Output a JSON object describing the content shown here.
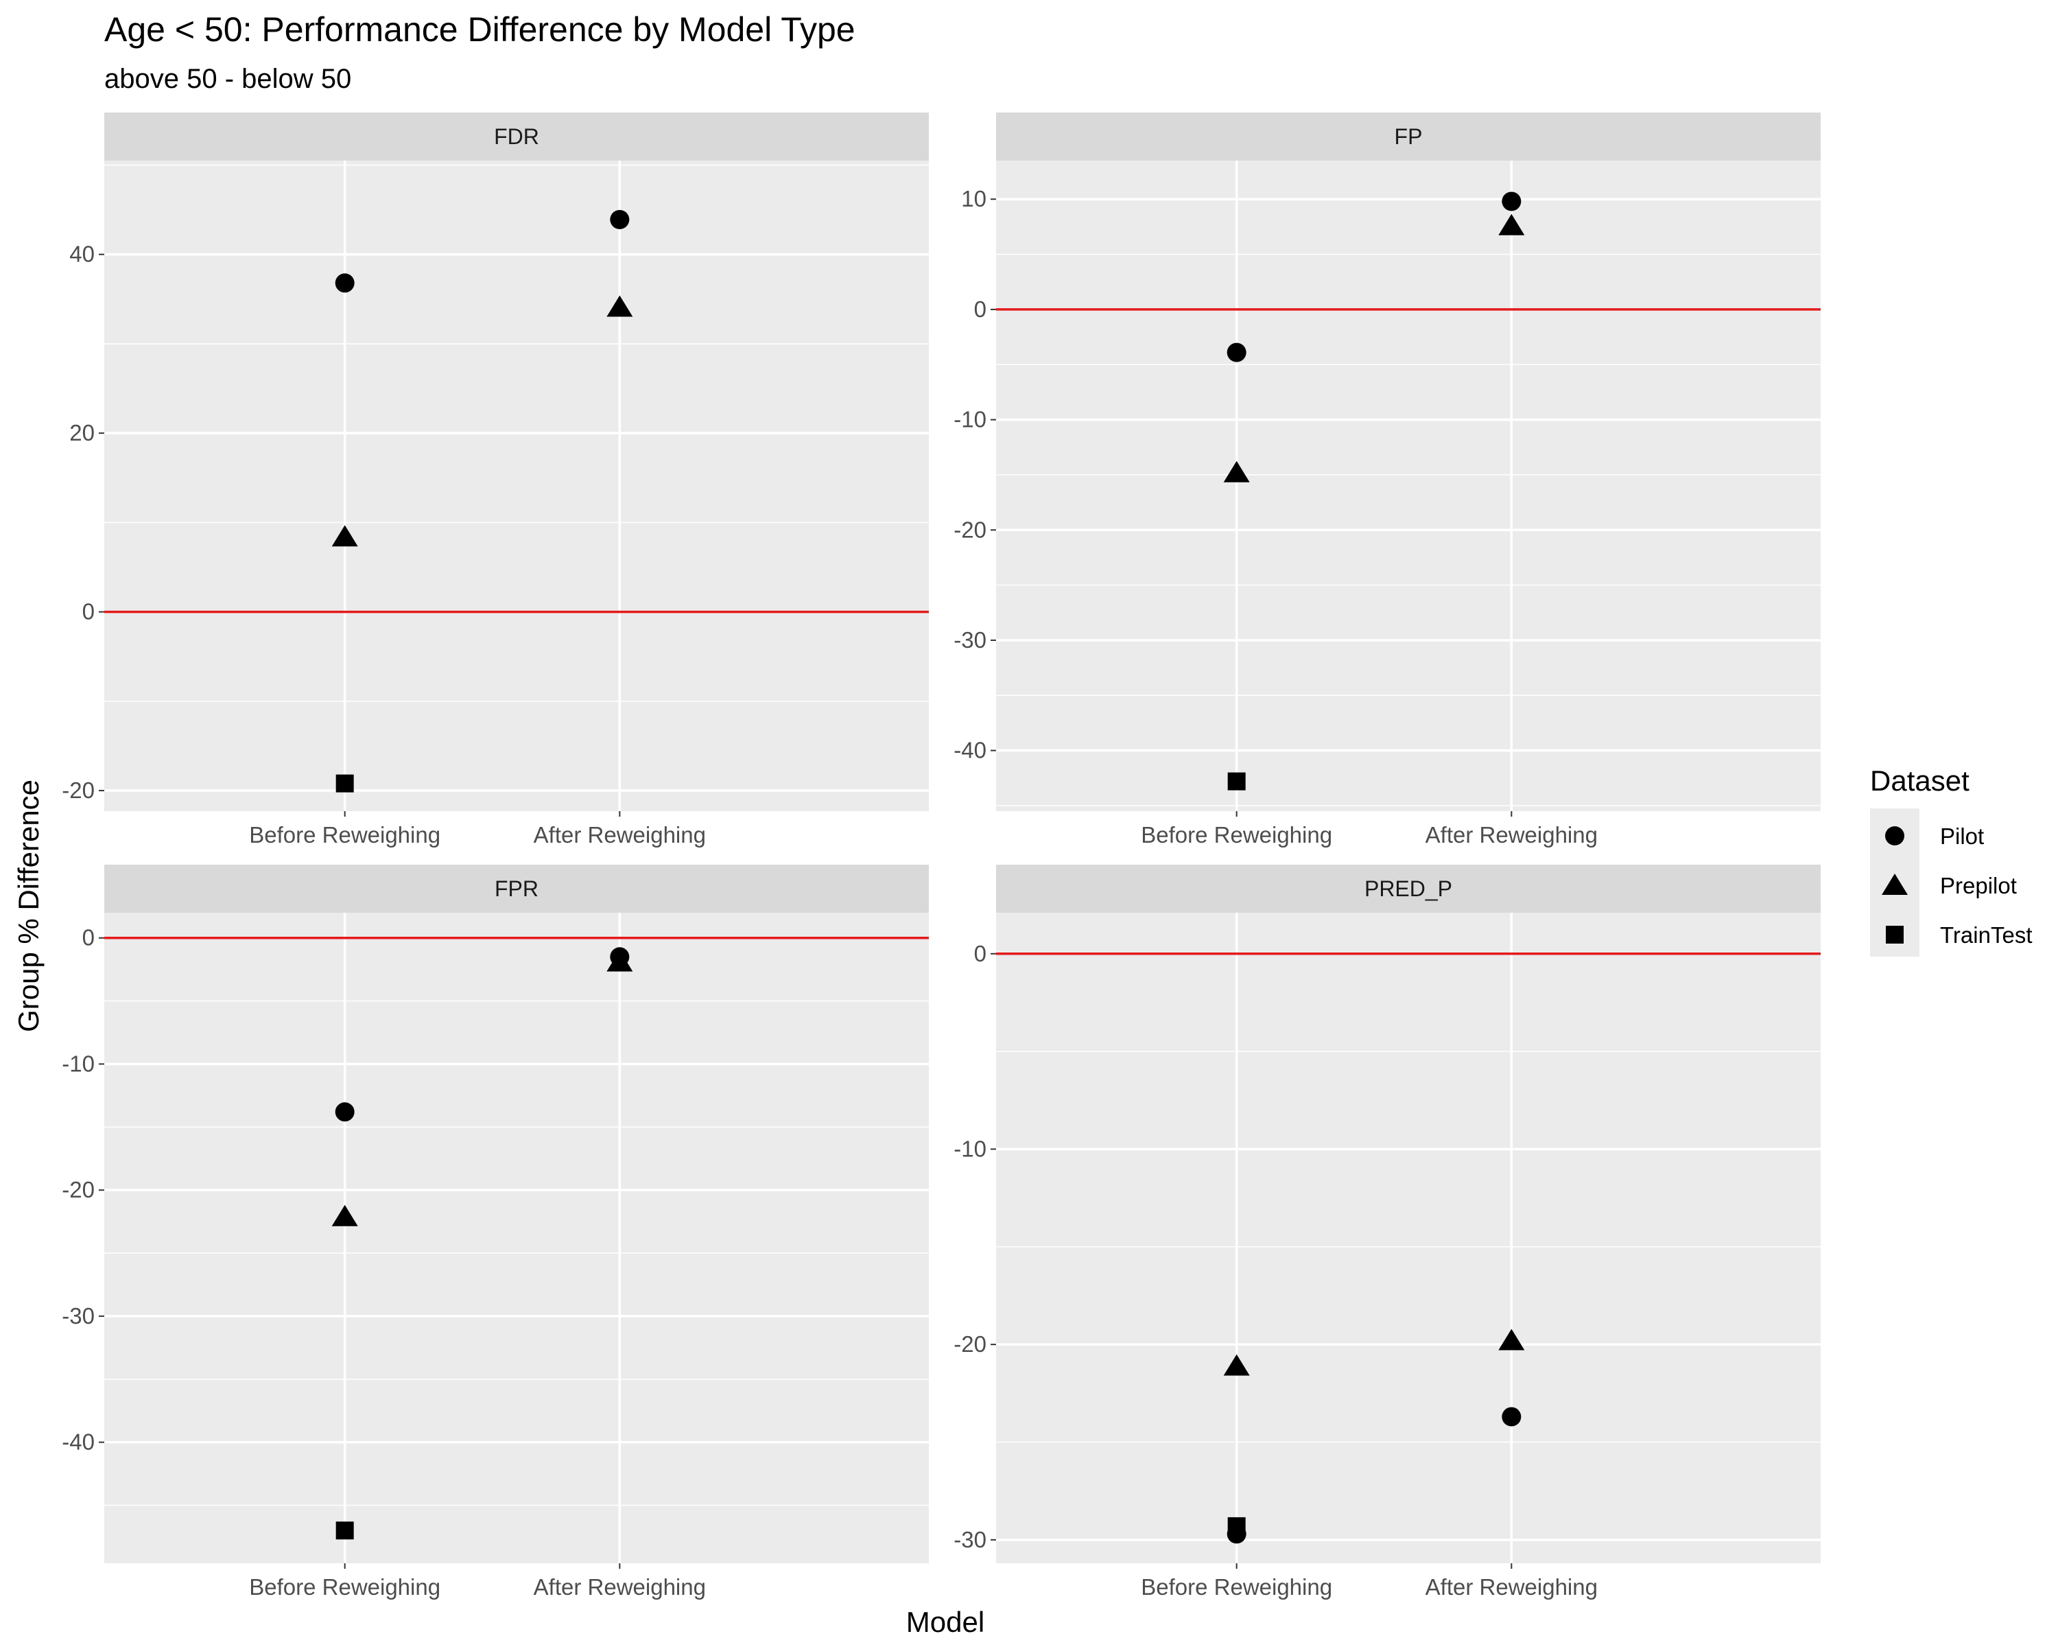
{
  "chart_data": {
    "type": "scatter",
    "title": "Age < 50: Performance Difference by Model Type",
    "subtitle": "above 50 - below 50",
    "xlabel": "Model",
    "ylabel": "Group % Difference",
    "categories": [
      "Before Reweighing",
      "After Reweighing"
    ],
    "reference_line": {
      "y": 0,
      "color": "#e31a1c"
    },
    "legend": {
      "title": "Dataset",
      "position": "right",
      "entries": [
        {
          "name": "Pilot",
          "shape": "circle"
        },
        {
          "name": "Prepilot",
          "shape": "triangle"
        },
        {
          "name": "TrainTest",
          "shape": "square"
        }
      ]
    },
    "panels": [
      {
        "label": "FDR",
        "ylim": [
          -22.3,
          50.5
        ],
        "yticks": [
          -20,
          0,
          20,
          40
        ],
        "series": [
          {
            "name": "Pilot",
            "values": [
              36.8,
              43.9
            ]
          },
          {
            "name": "Prepilot",
            "values": [
              8.4,
              34.1
            ]
          },
          {
            "name": "TrainTest",
            "values": [
              -19.2,
              null
            ]
          }
        ]
      },
      {
        "label": "FP",
        "ylim": [
          -45.5,
          13.5
        ],
        "yticks": [
          -40,
          -30,
          -20,
          -10,
          0,
          10
        ],
        "series": [
          {
            "name": "Pilot",
            "values": [
              -3.9,
              9.8
            ]
          },
          {
            "name": "Prepilot",
            "values": [
              -14.8,
              7.6
            ]
          },
          {
            "name": "TrainTest",
            "values": [
              -42.8,
              null
            ]
          }
        ]
      },
      {
        "label": "FPR",
        "ylim": [
          -49.6,
          2.0
        ],
        "yticks": [
          -40,
          -30,
          -20,
          -10,
          0
        ],
        "series": [
          {
            "name": "Pilot",
            "values": [
              -13.8,
              -1.5
            ]
          },
          {
            "name": "Prepilot",
            "values": [
              -22.1,
              -1.9
            ]
          },
          {
            "name": "TrainTest",
            "values": [
              -47.0,
              null
            ]
          }
        ]
      },
      {
        "label": "PRED_P",
        "ylim": [
          -31.2,
          2.1
        ],
        "yticks": [
          -30,
          -20,
          -10,
          0
        ],
        "series": [
          {
            "name": "Pilot",
            "values": [
              -29.7,
              -23.7
            ]
          },
          {
            "name": "Prepilot",
            "values": [
              -21.1,
              -19.8
            ]
          },
          {
            "name": "TrainTest",
            "values": [
              -29.3,
              null
            ]
          }
        ]
      }
    ]
  }
}
